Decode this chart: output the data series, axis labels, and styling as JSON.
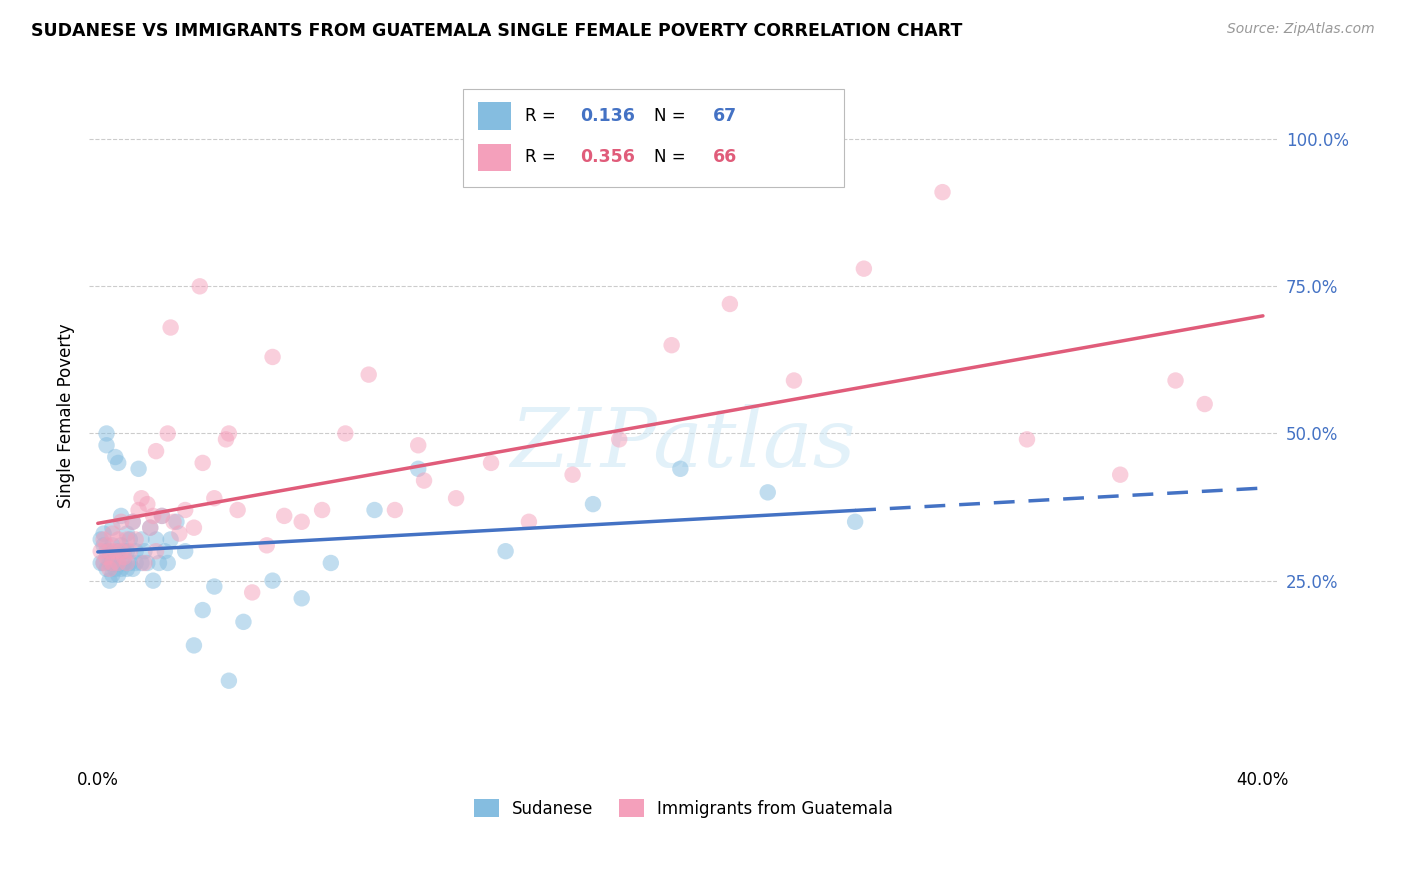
{
  "title": "SUDANESE VS IMMIGRANTS FROM GUATEMALA SINGLE FEMALE POVERTY CORRELATION CHART",
  "source": "Source: ZipAtlas.com",
  "ylabel": "Single Female Poverty",
  "ytick_values": [
    1.0,
    0.75,
    0.5,
    0.25
  ],
  "ytick_labels": [
    "100.0%",
    "75.0%",
    "50.0%",
    "25.0%"
  ],
  "xlim": [
    0.0,
    0.4
  ],
  "ylim": [
    -0.05,
    1.1
  ],
  "legend_label1": "Sudanese",
  "legend_label2": "Immigrants from Guatemala",
  "R1": 0.136,
  "N1": 67,
  "R2": 0.356,
  "N2": 66,
  "color_blue": "#85bde0",
  "color_pink": "#f4a0bb",
  "color_blue_text": "#4472c4",
  "color_pink_text": "#e05c7a",
  "color_blue_line": "#4472c4",
  "color_pink_line": "#e05c7a",
  "blue_scatter_x": [
    0.001,
    0.001,
    0.002,
    0.002,
    0.002,
    0.003,
    0.003,
    0.003,
    0.003,
    0.004,
    0.004,
    0.004,
    0.005,
    0.005,
    0.005,
    0.005,
    0.006,
    0.006,
    0.006,
    0.007,
    0.007,
    0.007,
    0.007,
    0.008,
    0.008,
    0.008,
    0.009,
    0.009,
    0.01,
    0.01,
    0.01,
    0.011,
    0.011,
    0.012,
    0.012,
    0.013,
    0.013,
    0.014,
    0.015,
    0.015,
    0.016,
    0.017,
    0.018,
    0.019,
    0.02,
    0.021,
    0.022,
    0.023,
    0.024,
    0.025,
    0.027,
    0.03,
    0.033,
    0.036,
    0.04,
    0.045,
    0.05,
    0.06,
    0.07,
    0.08,
    0.095,
    0.11,
    0.14,
    0.17,
    0.2,
    0.23,
    0.26
  ],
  "blue_scatter_y": [
    0.32,
    0.28,
    0.31,
    0.28,
    0.33,
    0.27,
    0.3,
    0.5,
    0.48,
    0.28,
    0.3,
    0.25,
    0.26,
    0.28,
    0.31,
    0.34,
    0.27,
    0.29,
    0.46,
    0.26,
    0.3,
    0.28,
    0.45,
    0.27,
    0.31,
    0.36,
    0.28,
    0.3,
    0.27,
    0.3,
    0.33,
    0.28,
    0.32,
    0.27,
    0.35,
    0.28,
    0.3,
    0.44,
    0.28,
    0.32,
    0.3,
    0.28,
    0.34,
    0.25,
    0.32,
    0.28,
    0.36,
    0.3,
    0.28,
    0.32,
    0.35,
    0.3,
    0.14,
    0.2,
    0.24,
    0.08,
    0.18,
    0.25,
    0.22,
    0.28,
    0.37,
    0.44,
    0.3,
    0.38,
    0.44,
    0.4,
    0.35
  ],
  "pink_scatter_x": [
    0.001,
    0.002,
    0.002,
    0.003,
    0.003,
    0.004,
    0.004,
    0.005,
    0.005,
    0.006,
    0.007,
    0.007,
    0.008,
    0.008,
    0.009,
    0.01,
    0.01,
    0.011,
    0.012,
    0.013,
    0.014,
    0.015,
    0.016,
    0.017,
    0.018,
    0.019,
    0.02,
    0.022,
    0.024,
    0.026,
    0.028,
    0.03,
    0.033,
    0.036,
    0.04,
    0.044,
    0.048,
    0.053,
    0.058,
    0.064,
    0.07,
    0.077,
    0.085,
    0.093,
    0.102,
    0.112,
    0.123,
    0.135,
    0.148,
    0.163,
    0.179,
    0.197,
    0.217,
    0.239,
    0.263,
    0.29,
    0.319,
    0.351,
    0.37,
    0.38,
    0.02,
    0.025,
    0.035,
    0.045,
    0.06,
    0.11
  ],
  "pink_scatter_y": [
    0.3,
    0.28,
    0.32,
    0.29,
    0.31,
    0.27,
    0.3,
    0.28,
    0.33,
    0.3,
    0.28,
    0.32,
    0.3,
    0.35,
    0.29,
    0.28,
    0.32,
    0.3,
    0.35,
    0.32,
    0.37,
    0.39,
    0.28,
    0.38,
    0.34,
    0.36,
    0.3,
    0.36,
    0.5,
    0.35,
    0.33,
    0.37,
    0.34,
    0.45,
    0.39,
    0.49,
    0.37,
    0.23,
    0.31,
    0.36,
    0.35,
    0.37,
    0.5,
    0.6,
    0.37,
    0.42,
    0.39,
    0.45,
    0.35,
    0.43,
    0.49,
    0.65,
    0.72,
    0.59,
    0.78,
    0.91,
    0.49,
    0.43,
    0.59,
    0.55,
    0.47,
    0.68,
    0.75,
    0.5,
    0.63,
    0.48
  ]
}
